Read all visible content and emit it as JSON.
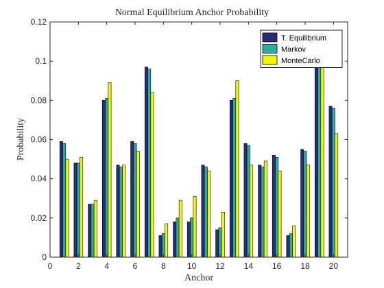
{
  "chart_data": {
    "type": "bar",
    "title": "Normal Equilibrium Anchor Probability",
    "xlabel": "Anchor",
    "ylabel": "Probability",
    "categories": [
      1,
      2,
      3,
      4,
      5,
      6,
      7,
      8,
      9,
      10,
      11,
      12,
      13,
      14,
      15,
      16,
      17,
      18,
      19,
      20
    ],
    "xlim": [
      0,
      21
    ],
    "ylim": [
      0,
      0.12
    ],
    "x_ticks": [
      0,
      2,
      4,
      6,
      8,
      10,
      12,
      14,
      16,
      18,
      20
    ],
    "y_ticks": [
      0,
      0.02,
      0.04,
      0.06,
      0.08,
      0.1,
      0.12
    ],
    "y_tick_labels": [
      "0",
      "0.02",
      "0.04",
      "0.06",
      "0.08",
      "0.1",
      "0.12"
    ],
    "grid": false,
    "legend_position": "top-right",
    "series": [
      {
        "name": "T. Equilibrium",
        "color": "#2b2b7f",
        "values": [
          0.059,
          0.048,
          0.027,
          0.08,
          0.047,
          0.059,
          0.097,
          0.011,
          0.018,
          0.018,
          0.047,
          0.014,
          0.08,
          0.058,
          0.047,
          0.052,
          0.011,
          0.055,
          0.097,
          0.077
        ]
      },
      {
        "name": "Markov",
        "color": "#29b09a",
        "values": [
          0.058,
          0.048,
          0.027,
          0.081,
          0.046,
          0.058,
          0.096,
          0.012,
          0.02,
          0.02,
          0.046,
          0.015,
          0.081,
          0.057,
          0.046,
          0.051,
          0.012,
          0.054,
          0.097,
          0.076
        ]
      },
      {
        "name": "MonteCarlo",
        "color": "#f5f500",
        "values": [
          0.05,
          0.051,
          0.029,
          0.089,
          0.047,
          0.054,
          0.084,
          0.017,
          0.029,
          0.031,
          0.044,
          0.023,
          0.09,
          0.047,
          0.049,
          0.044,
          0.016,
          0.047,
          0.1,
          0.063
        ]
      }
    ]
  }
}
